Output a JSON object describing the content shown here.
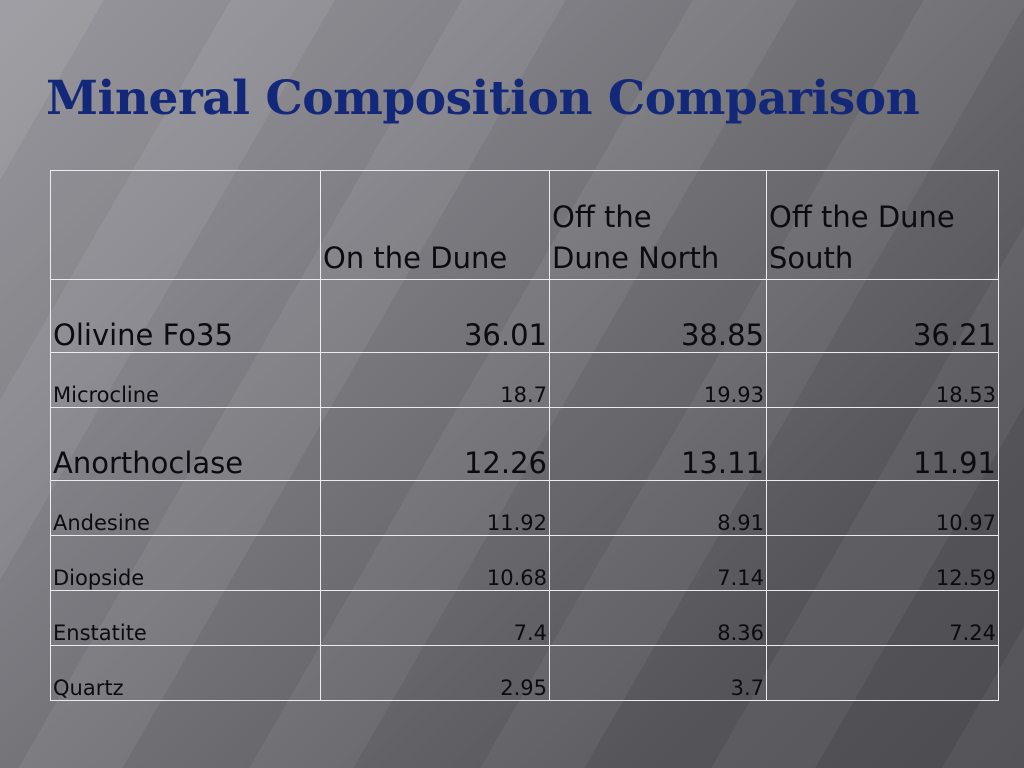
{
  "slide": {
    "title": "Mineral Composition Comparison"
  },
  "table": {
    "headers": [
      "",
      "On the Dune",
      "Off the Dune North",
      "Off the Dune South"
    ],
    "header_lines": {
      "col1": [
        "On the Dune"
      ],
      "col2": [
        "Off the",
        "Dune North"
      ],
      "col3": [
        "Off the Dune",
        "South"
      ]
    },
    "rows": [
      {
        "mineral": "Olivine Fo35",
        "on_dune": "36.01",
        "off_north": "38.85",
        "off_south": "36.21",
        "emphasis": true
      },
      {
        "mineral": "Microcline",
        "on_dune": "18.7",
        "off_north": "19.93",
        "off_south": "18.53",
        "emphasis": false
      },
      {
        "mineral": "Anorthoclase",
        "on_dune": "12.26",
        "off_north": "13.11",
        "off_south": "11.91",
        "emphasis": true
      },
      {
        "mineral": "Andesine",
        "on_dune": "11.92",
        "off_north": "8.91",
        "off_south": "10.97",
        "emphasis": false
      },
      {
        "mineral": "Diopside",
        "on_dune": "10.68",
        "off_north": "7.14",
        "off_south": "12.59",
        "emphasis": false
      },
      {
        "mineral": "Enstatite",
        "on_dune": "7.4",
        "off_north": "8.36",
        "off_south": "7.24",
        "emphasis": false
      },
      {
        "mineral": "Quartz",
        "on_dune": "2.95",
        "off_north": "3.7",
        "off_south": "",
        "emphasis": false
      }
    ]
  },
  "colors": {
    "title": "#14287a",
    "emphasis_text": "#13288e",
    "body_text": "#0c0c10",
    "grid_lines": "#ececee"
  }
}
